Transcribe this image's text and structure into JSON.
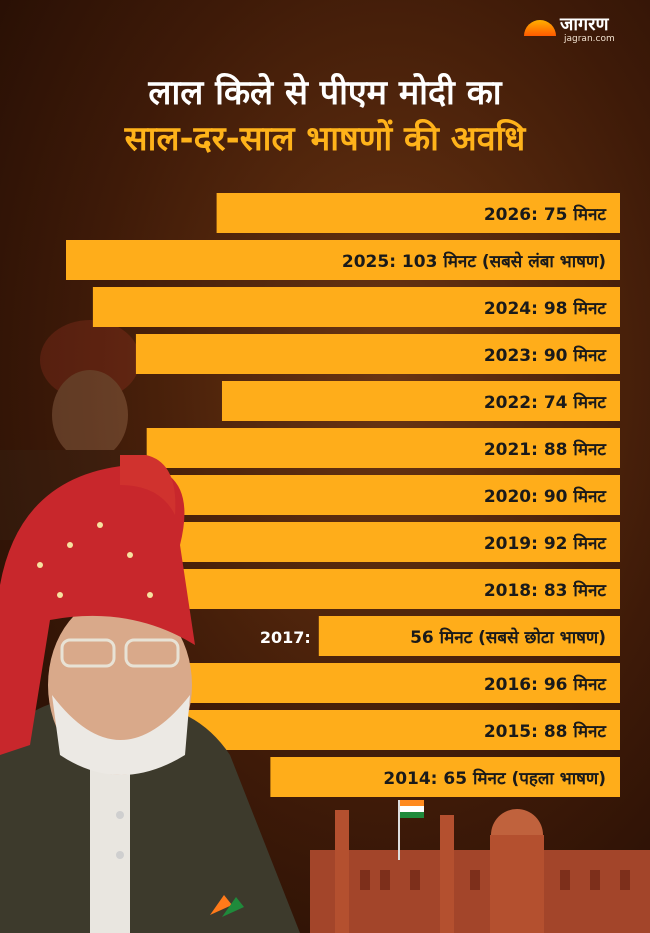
{
  "brand": {
    "name": "जागरण",
    "site": "jagran.com"
  },
  "title": {
    "line1": "लाल किले से पीएम मोदी का",
    "line2": "साल-दर-साल भाषणों की अवधि"
  },
  "colors": {
    "bar": "#ffad1a",
    "text": "#1a1a1a",
    "accent": "#ffb31a"
  },
  "chart_data": {
    "type": "bar",
    "orientation": "horizontal",
    "categories": [
      "2026",
      "2025",
      "2024",
      "2023",
      "2022",
      "2021",
      "2020",
      "2019",
      "2018",
      "2017",
      "2016",
      "2015",
      "2014"
    ],
    "values": [
      75,
      103,
      98,
      90,
      74,
      88,
      90,
      92,
      83,
      56,
      96,
      88,
      65
    ],
    "labels": [
      "2026: 75 मिनट",
      "2025: 103 मिनट (सबसे लंबा भाषण)",
      "2024: 98 मिनट",
      "2023: 90 मिनट",
      "2022: 74 मिनट",
      "2021: 88 मिनट",
      "2020: 90 मिनट",
      "2019: 92 मिनट",
      "2018: 83 मिनट",
      "56 मिनट (सबसे छोटा भाषण)",
      "2016: 96 मिनट",
      "2015: 88 मिनट",
      "2014: 65 मिनट (पहला भाषण)"
    ],
    "outside_label": "2017:",
    "unit": "मिनट",
    "xlim": [
      0,
      103
    ],
    "grid": false
  }
}
